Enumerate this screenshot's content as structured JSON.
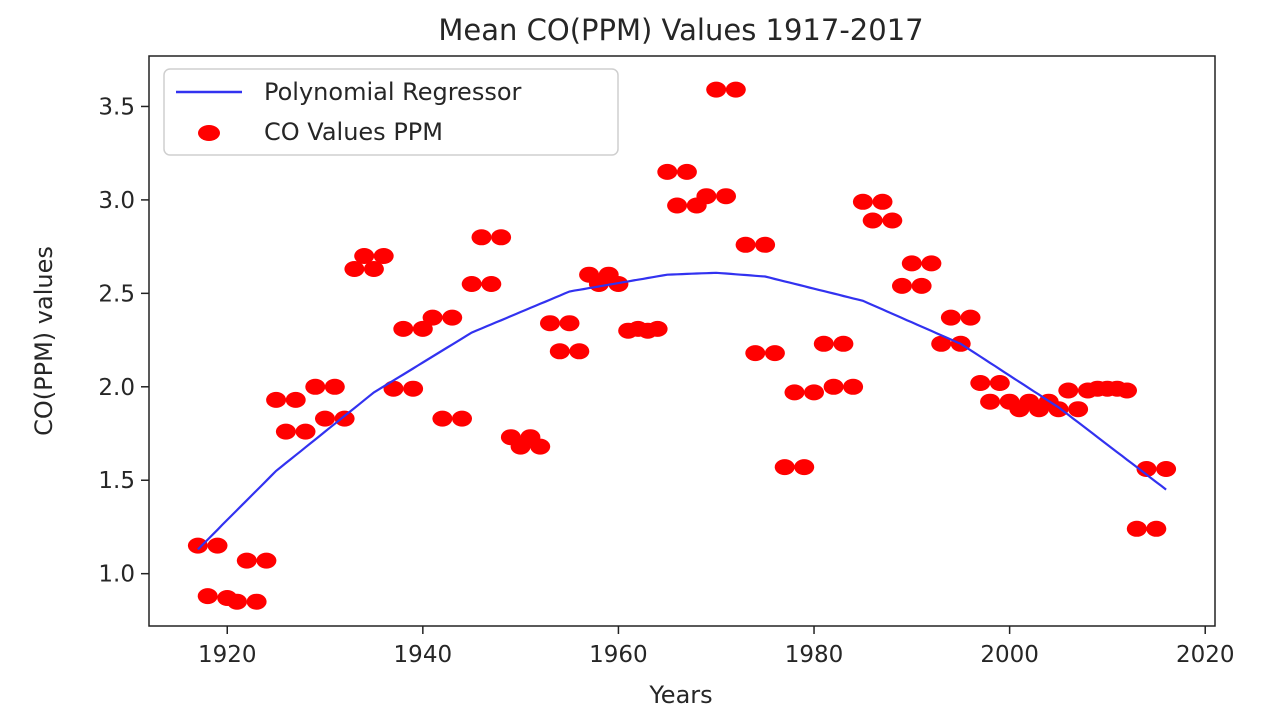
{
  "chart_data": {
    "type": "scatter",
    "title": "Mean CO(PPM) Values 1917-2017",
    "xlabel": "Years",
    "ylabel": "CO(PPM) values",
    "xlim": [
      1912,
      2021
    ],
    "ylim": [
      0.72,
      3.77
    ],
    "xticks": [
      1920,
      1940,
      1960,
      1980,
      2000,
      2020
    ],
    "yticks": [
      1.0,
      1.5,
      2.0,
      2.5,
      3.0,
      3.5
    ],
    "grid": false,
    "legend": "top-left",
    "legend_entries": [
      "Polynomial Regressor",
      "CO Values PPM"
    ],
    "colors": {
      "line": "#3232f0",
      "points": "#ff0000",
      "axes": "#222222"
    },
    "series": [
      {
        "name": "CO Values PPM",
        "kind": "scatter",
        "points": [
          [
            1917,
            1.15
          ],
          [
            1918,
            0.88
          ],
          [
            1919,
            1.15
          ],
          [
            1920,
            0.87
          ],
          [
            1921,
            0.85
          ],
          [
            1922,
            1.07
          ],
          [
            1923,
            0.85
          ],
          [
            1924,
            1.07
          ],
          [
            1925,
            1.93
          ],
          [
            1926,
            1.76
          ],
          [
            1927,
            1.93
          ],
          [
            1928,
            1.76
          ],
          [
            1929,
            2.0
          ],
          [
            1930,
            1.83
          ],
          [
            1931,
            2.0
          ],
          [
            1932,
            1.83
          ],
          [
            1933,
            2.63
          ],
          [
            1934,
            2.7
          ],
          [
            1935,
            2.63
          ],
          [
            1936,
            2.7
          ],
          [
            1937,
            1.99
          ],
          [
            1938,
            2.31
          ],
          [
            1939,
            1.99
          ],
          [
            1940,
            2.31
          ],
          [
            1941,
            2.37
          ],
          [
            1942,
            1.83
          ],
          [
            1943,
            2.37
          ],
          [
            1944,
            1.83
          ],
          [
            1945,
            2.55
          ],
          [
            1946,
            2.8
          ],
          [
            1947,
            2.55
          ],
          [
            1948,
            2.8
          ],
          [
            1949,
            1.73
          ],
          [
            1950,
            1.68
          ],
          [
            1951,
            1.73
          ],
          [
            1952,
            1.68
          ],
          [
            1953,
            2.34
          ],
          [
            1954,
            2.19
          ],
          [
            1955,
            2.34
          ],
          [
            1956,
            2.19
          ],
          [
            1957,
            2.6
          ],
          [
            1958,
            2.55
          ],
          [
            1959,
            2.6
          ],
          [
            1960,
            2.55
          ],
          [
            1961,
            2.3
          ],
          [
            1962,
            2.31
          ],
          [
            1963,
            2.3
          ],
          [
            1964,
            2.31
          ],
          [
            1965,
            3.15
          ],
          [
            1966,
            2.97
          ],
          [
            1967,
            3.15
          ],
          [
            1968,
            2.97
          ],
          [
            1969,
            3.02
          ],
          [
            1970,
            3.59
          ],
          [
            1971,
            3.02
          ],
          [
            1972,
            3.59
          ],
          [
            1973,
            2.76
          ],
          [
            1974,
            2.18
          ],
          [
            1975,
            2.76
          ],
          [
            1976,
            2.18
          ],
          [
            1977,
            1.57
          ],
          [
            1978,
            1.97
          ],
          [
            1979,
            1.57
          ],
          [
            1980,
            1.97
          ],
          [
            1981,
            2.23
          ],
          [
            1982,
            2.0
          ],
          [
            1983,
            2.23
          ],
          [
            1984,
            2.0
          ],
          [
            1985,
            2.99
          ],
          [
            1986,
            2.89
          ],
          [
            1987,
            2.99
          ],
          [
            1988,
            2.89
          ],
          [
            1989,
            2.54
          ],
          [
            1990,
            2.66
          ],
          [
            1991,
            2.54
          ],
          [
            1992,
            2.66
          ],
          [
            1993,
            2.23
          ],
          [
            1994,
            2.37
          ],
          [
            1995,
            2.23
          ],
          [
            1996,
            2.37
          ],
          [
            1997,
            2.02
          ],
          [
            1998,
            1.92
          ],
          [
            1999,
            2.02
          ],
          [
            2000,
            1.92
          ],
          [
            2001,
            1.88
          ],
          [
            2002,
            1.92
          ],
          [
            2003,
            1.88
          ],
          [
            2004,
            1.92
          ],
          [
            2005,
            1.88
          ],
          [
            2006,
            1.98
          ],
          [
            2007,
            1.88
          ],
          [
            2008,
            1.98
          ],
          [
            2009,
            1.99
          ],
          [
            2010,
            1.99
          ],
          [
            2011,
            1.99
          ],
          [
            2012,
            1.98
          ],
          [
            2013,
            1.24
          ],
          [
            2014,
            1.56
          ],
          [
            2015,
            1.24
          ],
          [
            2016,
            1.56
          ]
        ]
      },
      {
        "name": "Polynomial Regressor",
        "kind": "line",
        "points": [
          [
            1917,
            1.13
          ],
          [
            1925,
            1.55
          ],
          [
            1935,
            1.97
          ],
          [
            1945,
            2.29
          ],
          [
            1955,
            2.51
          ],
          [
            1965,
            2.6
          ],
          [
            1970,
            2.61
          ],
          [
            1975,
            2.59
          ],
          [
            1985,
            2.46
          ],
          [
            1995,
            2.23
          ],
          [
            2005,
            1.89
          ],
          [
            2016,
            1.45
          ]
        ]
      }
    ]
  }
}
